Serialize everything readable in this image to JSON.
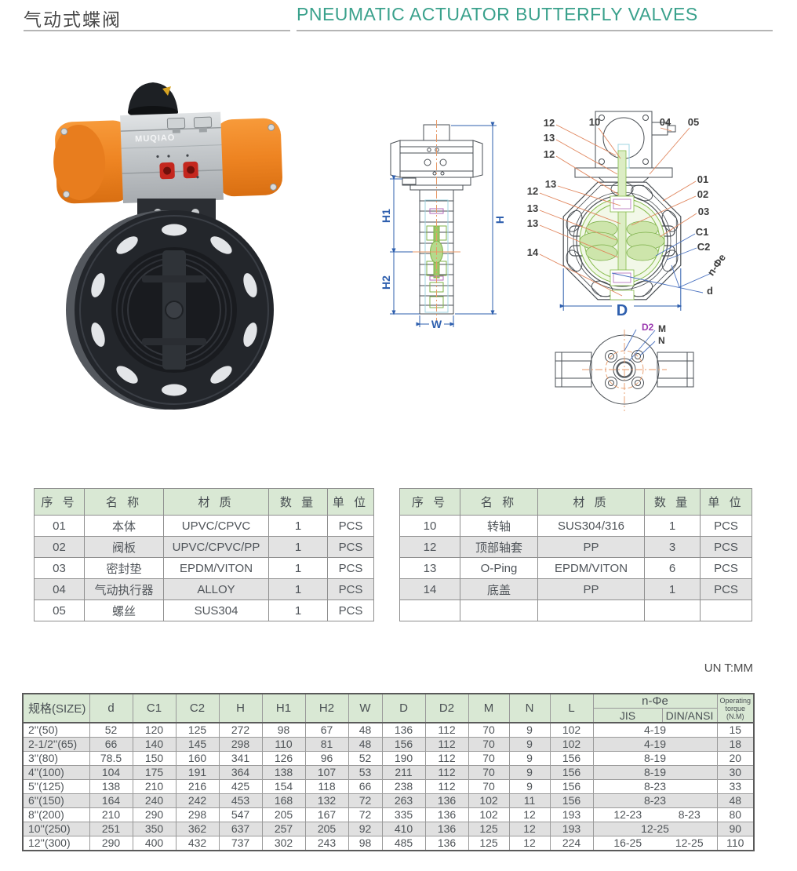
{
  "palette": {
    "accent_teal": "#3aa18c",
    "table_header_green": "#d9e8d4",
    "row_alt_gray": "#e3e3e3",
    "dimension_blue": "#2e5fae",
    "leader_orange": "#e0855c",
    "actuator_orange": "#ee8422",
    "callout_purple": "#9b3ab0"
  },
  "header": {
    "title_zh": "气动式蝶阀",
    "title_en": "PNEUMATIC ACTUATOR BUTTERFLY VALVES"
  },
  "photo": {
    "brand": "MUQIAO"
  },
  "drawings": {
    "side_view": {
      "h1": "H1",
      "h2": "H2",
      "h": "H",
      "w": "W"
    },
    "front_view": {
      "left_callouts": [
        "12",
        "13",
        "12",
        "13",
        "12",
        "13",
        "13",
        "14"
      ],
      "top_callouts": [
        "10",
        "04",
        "05"
      ],
      "right_callouts": [
        "01",
        "02",
        "03",
        "C1",
        "C2"
      ],
      "n_phi_label": "n-Φe",
      "d_label": "d",
      "diameter_label": "D"
    },
    "bottom_view": {
      "d2": "D2",
      "m": "M",
      "n": "N"
    }
  },
  "parts_tables": {
    "headers": [
      "序 号",
      "名 称",
      "材 质",
      "数 量",
      "单 位"
    ],
    "left_rows": [
      [
        "01",
        "本体",
        "UPVC/CPVC",
        "1",
        "PCS"
      ],
      [
        "02",
        "阀板",
        "UPVC/CPVC/PP",
        "1",
        "PCS"
      ],
      [
        "03",
        "密封垫",
        "EPDM/VITON",
        "1",
        "PCS"
      ],
      [
        "04",
        "气动执行器",
        "ALLOY",
        "1",
        "PCS"
      ],
      [
        "05",
        "螺丝",
        "SUS304",
        "1",
        "PCS"
      ]
    ],
    "right_rows": [
      [
        "10",
        "转轴",
        "SUS304/316",
        "1",
        "PCS"
      ],
      [
        "12",
        "顶部轴套",
        "PP",
        "3",
        "PCS"
      ],
      [
        "13",
        "O-Ping",
        "EPDM/VITON",
        "6",
        "PCS"
      ],
      [
        "14",
        "底盖",
        "PP",
        "1",
        "PCS"
      ],
      [
        "",
        "",
        "",
        "",
        ""
      ]
    ]
  },
  "unit_note": "UN T:MM",
  "dimension_table": {
    "columns": [
      "规格(SIZE)",
      "d",
      "C1",
      "C2",
      "H",
      "H1",
      "H2",
      "W",
      "D",
      "D2",
      "M",
      "N",
      "L"
    ],
    "n_phi_e_header": "n-Φe",
    "n_phi_e_sub": [
      "JIS",
      "DIN/ANSI"
    ],
    "torque_header_lines": [
      "Operating",
      "torque",
      "(N.M)"
    ],
    "rows": [
      {
        "values": [
          "2''(50)",
          "52",
          "120",
          "125",
          "272",
          "98",
          "67",
          "48",
          "136",
          "112",
          "70",
          "9",
          "102"
        ],
        "n_phi_e": "4-19",
        "torque": "15"
      },
      {
        "values": [
          "2-1/2''(65)",
          "66",
          "140",
          "145",
          "298",
          "110",
          "81",
          "48",
          "156",
          "112",
          "70",
          "9",
          "102"
        ],
        "n_phi_e": "4-19",
        "torque": "18"
      },
      {
        "values": [
          "3''(80)",
          "78.5",
          "150",
          "160",
          "341",
          "126",
          "96",
          "52",
          "190",
          "112",
          "70",
          "9",
          "156"
        ],
        "n_phi_e": "8-19",
        "torque": "20"
      },
      {
        "values": [
          "4''(100)",
          "104",
          "175",
          "191",
          "364",
          "138",
          "107",
          "53",
          "211",
          "112",
          "70",
          "9",
          "156"
        ],
        "n_phi_e": "8-19",
        "torque": "30"
      },
      {
        "values": [
          "5''(125)",
          "138",
          "210",
          "216",
          "425",
          "154",
          "118",
          "66",
          "238",
          "112",
          "70",
          "9",
          "156"
        ],
        "n_phi_e": "8-23",
        "torque": "33"
      },
      {
        "values": [
          "6''(150)",
          "164",
          "240",
          "242",
          "453",
          "168",
          "132",
          "72",
          "263",
          "136",
          "102",
          "11",
          "156"
        ],
        "n_phi_e": "8-23",
        "torque": "48"
      },
      {
        "values": [
          "8''(200)",
          "210",
          "290",
          "298",
          "547",
          "205",
          "167",
          "72",
          "335",
          "136",
          "102",
          "12",
          "193"
        ],
        "n_phi_e": {
          "jis": "12-23",
          "din_ansi": "8-23"
        },
        "torque": "80"
      },
      {
        "values": [
          "10''(250)",
          "251",
          "350",
          "362",
          "637",
          "257",
          "205",
          "92",
          "410",
          "136",
          "125",
          "12",
          "193"
        ],
        "n_phi_e": "12-25",
        "torque": "90"
      },
      {
        "values": [
          "12''(300)",
          "290",
          "400",
          "432",
          "737",
          "302",
          "243",
          "98",
          "485",
          "136",
          "125",
          "12",
          "224"
        ],
        "n_phi_e": {
          "jis": "16-25",
          "din_ansi": "12-25"
        },
        "torque": "110"
      }
    ]
  }
}
